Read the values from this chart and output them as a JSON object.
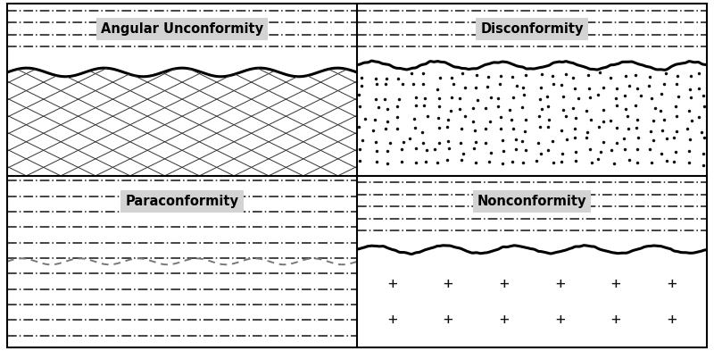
{
  "bg_color": "#ffffff",
  "label_bg": "#d3d3d3",
  "dash_color": "#111111",
  "wave_color": "#000000",
  "hatch_color": "#000000",
  "dot_color": "#111111",
  "para_color": "#888888",
  "cross_color": "#111111",
  "panels": {
    "angular": "Angular Unconformity",
    "disconformity": "Disconformity",
    "paraconformity": "Paraconformity",
    "nonconformity": "Nonconformity"
  },
  "fig_width": 8.0,
  "fig_height": 3.93,
  "dpi": 100
}
